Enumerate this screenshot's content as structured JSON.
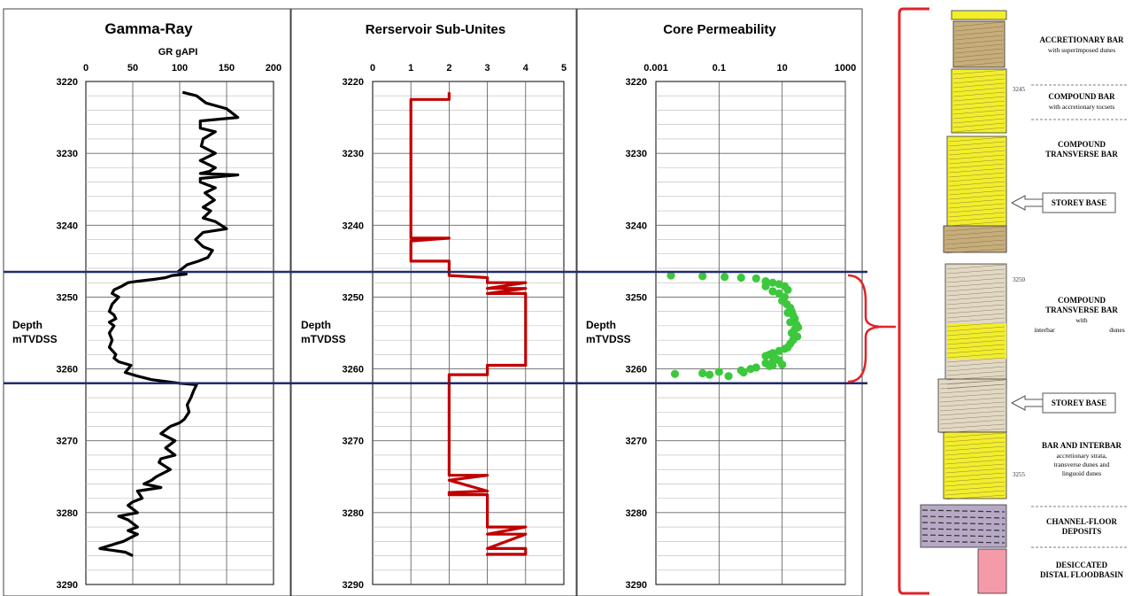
{
  "chart_data": [
    {
      "type": "line",
      "title": "Gamma-Ray",
      "xlabel": "GR gAPI",
      "ylabel": "Depth mTVDSS",
      "xlim": [
        0,
        200
      ],
      "ylim": [
        3220,
        3290
      ],
      "y_inverted": true,
      "x_ticks": [
        0,
        50,
        100,
        150,
        200
      ],
      "y_ticks": [
        3220,
        3230,
        3240,
        3250,
        3260,
        3270,
        3280,
        3290
      ],
      "grid": true,
      "color": "#000000",
      "series": [
        {
          "x": [
            103,
            118,
            128,
            150,
            162,
            122,
            122,
            138,
            125,
            123,
            138,
            122,
            138,
            132,
            122,
            162,
            122,
            122,
            138,
            127,
            137,
            125,
            133,
            125,
            138,
            150,
            125,
            117,
            125,
            135,
            130,
            120,
            108,
            103,
            98,
            107,
            92,
            85,
            75,
            55,
            45,
            38,
            30,
            28,
            35,
            28,
            25,
            30,
            32,
            25,
            30,
            25,
            28,
            25,
            32,
            30,
            35,
            48,
            45,
            42,
            55,
            70,
            100,
            118,
            115,
            112,
            108,
            110,
            105,
            100,
            90,
            85,
            80,
            95,
            90,
            85,
            95,
            80,
            78,
            90,
            75,
            70,
            62,
            80,
            55,
            60,
            50,
            45,
            55,
            35,
            45,
            55,
            45,
            55,
            40,
            15,
            42,
            50
          ],
          "y": [
            3221.5,
            3222.0,
            3223.0,
            3223.8,
            3225.0,
            3225.5,
            3226.5,
            3227.0,
            3228.0,
            3229.0,
            3230.0,
            3231.0,
            3232.0,
            3232.5,
            3232.8,
            3233.0,
            3233.5,
            3234.0,
            3234.8,
            3235.5,
            3236.5,
            3237.5,
            3238.0,
            3239.0,
            3239.5,
            3240.5,
            3241.0,
            3242.0,
            3243.0,
            3243.5,
            3244.5,
            3245.0,
            3245.5,
            3246.0,
            3246.5,
            3246.8,
            3247.0,
            3247.3,
            3247.5,
            3247.8,
            3248.0,
            3248.5,
            3249.0,
            3249.5,
            3250.0,
            3251.0,
            3252.0,
            3252.5,
            3253.0,
            3253.5,
            3254.0,
            3255.0,
            3256.0,
            3257.0,
            3258.0,
            3258.5,
            3259.0,
            3259.5,
            3260.0,
            3260.5,
            3261.0,
            3261.5,
            3262.0,
            3262.2,
            3263.0,
            3264.0,
            3265.0,
            3266.0,
            3267.0,
            3267.5,
            3268.0,
            3268.5,
            3269.0,
            3270.0,
            3270.5,
            3271.0,
            3272.0,
            3272.5,
            3273.0,
            3274.0,
            3275.0,
            3275.5,
            3276.0,
            3276.5,
            3277.0,
            3278.0,
            3278.5,
            3279.0,
            3280.0,
            3280.5,
            3281.0,
            3282.0,
            3282.5,
            3283.0,
            3284.0,
            3285.0,
            3285.5,
            3286.0
          ]
        }
      ]
    },
    {
      "type": "line",
      "title": "Rerservoir Sub-Unites",
      "ylabel": "Depth mTVDSS",
      "xlim": [
        0,
        5
      ],
      "ylim": [
        3220,
        3290
      ],
      "y_inverted": true,
      "x_ticks": [
        0,
        1,
        2,
        3,
        4,
        5
      ],
      "y_ticks": [
        3220,
        3230,
        3240,
        3250,
        3260,
        3270,
        3280,
        3290
      ],
      "grid": true,
      "color": "#c00000",
      "series": [
        {
          "x": [
            2,
            2,
            1,
            1,
            2,
            1,
            1,
            2,
            2,
            2,
            3,
            3,
            4,
            3,
            4,
            3,
            4,
            4,
            3,
            3,
            2,
            2,
            2,
            3,
            2,
            3,
            2,
            2,
            3,
            3,
            4,
            3,
            4,
            3,
            3,
            4,
            4,
            3,
            3
          ],
          "y": [
            3221.5,
            3222.5,
            3222.5,
            3241.8,
            3241.8,
            3242.2,
            3245.0,
            3245.0,
            3246.0,
            3247.0,
            3247.3,
            3248.0,
            3248.0,
            3248.8,
            3248.8,
            3249.5,
            3249.5,
            3259.5,
            3259.5,
            3260.8,
            3260.8,
            3261.5,
            3274.8,
            3274.8,
            3275.5,
            3277.0,
            3277.2,
            3277.5,
            3277.5,
            3282.0,
            3282.0,
            3283.0,
            3283.0,
            3285.0,
            3285.0,
            3285.0,
            3285.8,
            3285.8,
            3286.0
          ]
        }
      ]
    },
    {
      "type": "scatter",
      "title": "Core Permeability",
      "ylabel": "Depth mTVDSS",
      "x_scale": "log",
      "xlim": [
        0.001,
        1000
      ],
      "ylim": [
        3220,
        3290
      ],
      "y_inverted": true,
      "x_ticks": [
        "0.001",
        "0.1",
        "10",
        "1000"
      ],
      "y_ticks": [
        3220,
        3230,
        3240,
        3250,
        3260,
        3270,
        3280,
        3290
      ],
      "grid": true,
      "color": "#3cc83c",
      "series": [
        {
          "x": [
            0.003,
            0.03,
            0.15,
            0.5,
            1.5,
            3,
            5,
            8,
            12,
            15,
            3,
            5,
            8,
            12,
            10,
            14,
            18,
            20,
            15,
            22,
            25,
            18,
            28,
            32,
            25,
            20,
            30,
            22,
            18,
            15,
            12,
            8,
            5,
            4,
            3,
            6,
            8,
            5,
            3,
            10,
            5,
            4,
            1.5,
            1,
            0.5,
            0.1,
            0.03,
            0.004,
            0.05,
            0.2,
            0.6
          ],
          "y": [
            3247.0,
            3247.1,
            3247.2,
            3247.3,
            3247.4,
            3247.8,
            3248.0,
            3248.2,
            3248.5,
            3249.0,
            3248.5,
            3249.2,
            3249.5,
            3250.0,
            3250.5,
            3251.0,
            3251.5,
            3252.0,
            3252.2,
            3252.5,
            3253.0,
            3253.5,
            3253.8,
            3254.2,
            3254.5,
            3255.0,
            3255.5,
            3256.0,
            3256.5,
            3257.0,
            3257.2,
            3257.5,
            3257.8,
            3258.0,
            3258.2,
            3258.5,
            3258.8,
            3259.0,
            3259.2,
            3259.4,
            3259.5,
            3259.6,
            3259.8,
            3260.0,
            3260.2,
            3260.4,
            3260.6,
            3260.7,
            3260.8,
            3261.0,
            3260.5
          ]
        }
      ]
    }
  ],
  "panels": {
    "p1": {
      "title": "Gamma-Ray",
      "xlabel": "GR gAPI",
      "ylabel_line1": "Depth",
      "ylabel_line2": "mTVDSS",
      "xticks": [
        "0",
        "50",
        "100",
        "150",
        "200"
      ]
    },
    "p2": {
      "title": "Rerservoir Sub-Unites",
      "ylabel_line1": "Depth",
      "ylabel_line2": "mTVDSS",
      "xticks": [
        "0",
        "1",
        "2",
        "3",
        "4",
        "5"
      ]
    },
    "p3": {
      "title": "Core Permeability",
      "ylabel_line1": "Depth",
      "ylabel_line2": "mTVDSS",
      "xticks": [
        "0.001",
        "0.1",
        "10",
        "1000"
      ]
    },
    "yticks": [
      "3220",
      "3230",
      "3240",
      "3250",
      "3260",
      "3270",
      "3280",
      "3290"
    ]
  },
  "boundaries": {
    "top_depth": 3246.5,
    "bottom_depth": 3262.0,
    "color": "#1f2d6e"
  },
  "section": {
    "labels": {
      "accretionary_bar": "ACCRETIONARY BAR",
      "accretionary_bar_sub": "with superimposed dunes",
      "compound_bar": "COMPOUND BAR",
      "compound_bar_sub": "with accretionary tocsets",
      "compound_transverse_1": "COMPOUND",
      "compound_transverse_2": "TRANSVERSE BAR",
      "storey_base_1": "STOREY BASE",
      "compound_transverse_b1": "COMPOUND",
      "compound_transverse_b2": "TRANSVERSE BAR",
      "compound_transverse_b3": "with",
      "compound_transverse_b4a": "interbar",
      "compound_transverse_b4b": "dunes",
      "storey_base_2": "STOREY BASE",
      "bar_interbar": "BAR AND INTERBAR",
      "bar_interbar_sub1": "accretionary strata,",
      "bar_interbar_sub2": "transverse dunes and",
      "bar_interbar_sub3": "linguoid dunes",
      "channel_floor_1": "CHANNEL-FLOOR",
      "channel_floor_2": "DEPOSITS",
      "desiccated_1": "DESICCATED",
      "desiccated_2": "DISTAL FLOODBASIN"
    },
    "depth_marks": [
      "3245",
      "3250",
      "3255"
    ],
    "colors": {
      "sand_yellow": "#f2ee2c",
      "sand_tan": "#b89a5e",
      "pale": "#e2d9c4",
      "flood_pink": "#f49aa8",
      "channel": "#b7a9c6",
      "bracket_red": "#e0242a"
    }
  }
}
